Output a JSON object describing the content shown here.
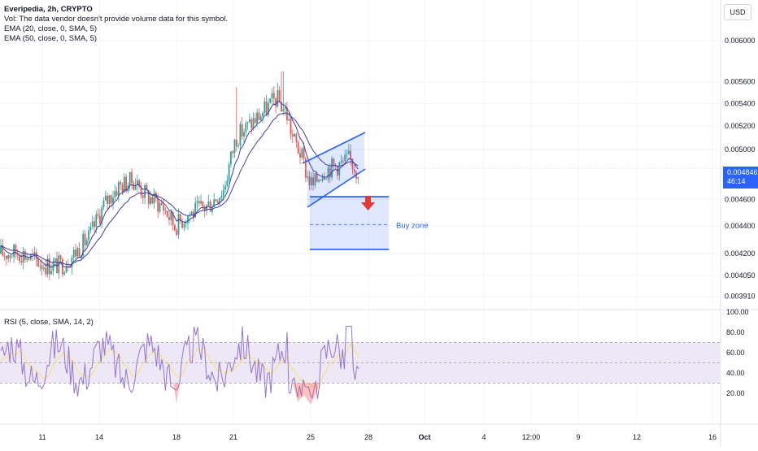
{
  "symbol": {
    "name": "Everipedia",
    "interval": "2h",
    "exchange": "CRYPTO",
    "title": "Everipedia, 2h, CRYPTO"
  },
  "legend": {
    "vol": "Vol: The data vendor doesn't provide volume data for this symbol.",
    "ema20": "EMA (20, close, 0, SMA, 5)",
    "ema50": "EMA (50, close, 0, SMA, 5)"
  },
  "rsi_legend": "RSI (5, close, SMA, 14, 2)",
  "currency": "USD",
  "last_price": {
    "value": "0.004846",
    "countdown": "46:14"
  },
  "annotation": {
    "buy_zone": "Buy zone"
  },
  "colors": {
    "up": "#26a69a",
    "down": "#ef5350",
    "ema": "#3f3f9e",
    "drawing": "#2962ff",
    "arrow": "#e53935",
    "rsi_line": "#9575cd",
    "rsi_ma": "#f5e36b",
    "rsi_band": "#ede7f6"
  },
  "price_axis": [
    "0.006000",
    "0.005600",
    "0.005400",
    "0.005200",
    "0.005000",
    "0.004600",
    "0.004400",
    "0.004200",
    "0.004050",
    "0.003910"
  ],
  "rsi_axis": [
    "100.00",
    "80.00",
    "60.00",
    "40.00",
    "20.00"
  ],
  "time_axis": [
    "11",
    "14",
    "18",
    "21",
    "25",
    "28",
    "Oct",
    "4",
    "12:00",
    "9",
    "12",
    "16"
  ],
  "chart_data": {
    "type": "candlestick",
    "price_range": [
      0.0039,
      0.0062
    ],
    "price_scale": "log",
    "ema_periods": [
      20,
      50
    ],
    "key_levels": {
      "buy_zone_top": 0.00462,
      "buy_zone_mid": 0.00441,
      "buy_zone_bottom": 0.00423,
      "last_close": 0.004846
    },
    "rsi": {
      "range": [
        0,
        100
      ],
      "upper": 70,
      "mid": 50,
      "lower": 30
    }
  }
}
